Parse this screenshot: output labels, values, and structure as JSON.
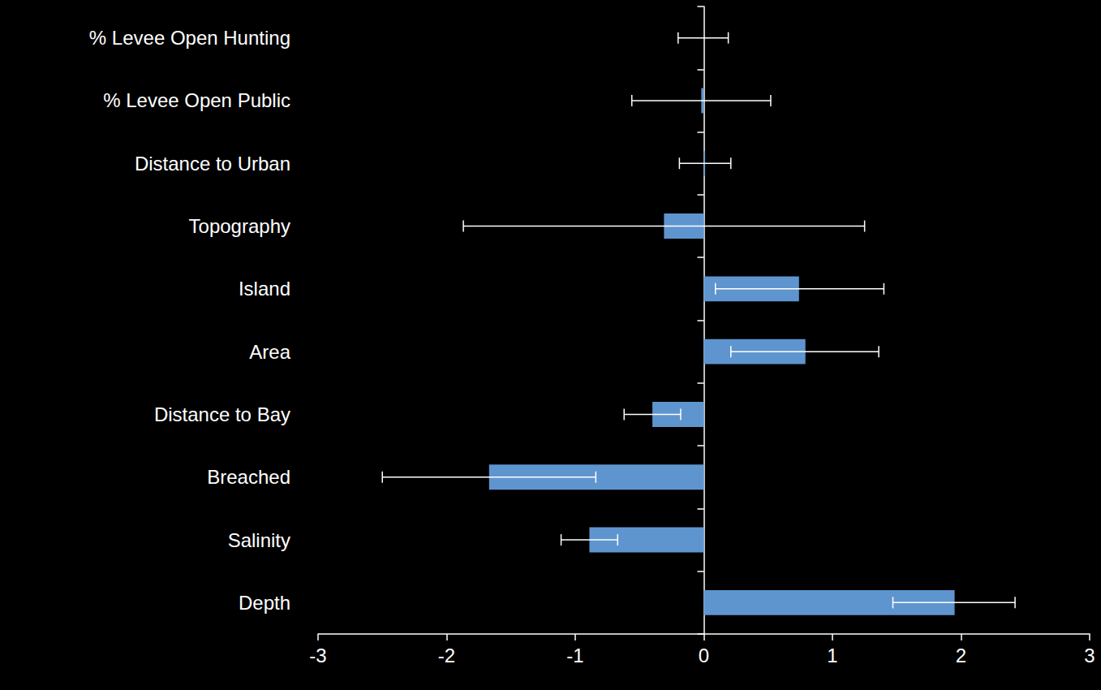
{
  "chart_data": {
    "type": "bar",
    "orientation": "horizontal",
    "categories": [
      "% Levee Open Hunting",
      "% Levee Open Public",
      "Distance to Urban",
      "Topography",
      "Island",
      "Area",
      "Distance to Bay",
      "Breached",
      "Salinity",
      "Depth"
    ],
    "values": [
      0,
      -0.02,
      0.01,
      -0.31,
      0.74,
      0.79,
      -0.4,
      -1.67,
      -0.89,
      1.95
    ],
    "error_low": [
      -0.2,
      -0.56,
      -0.19,
      -1.87,
      0.09,
      0.21,
      -0.62,
      -2.5,
      -1.11,
      1.47
    ],
    "error_high": [
      0.19,
      0.52,
      0.21,
      1.25,
      1.4,
      1.36,
      -0.18,
      -0.84,
      -0.67,
      2.42
    ],
    "color": "#5f95cf",
    "xlim": [
      -3,
      3
    ],
    "xticks": [
      -3,
      -2,
      -1,
      0,
      1,
      2,
      3
    ],
    "grid": false
  }
}
